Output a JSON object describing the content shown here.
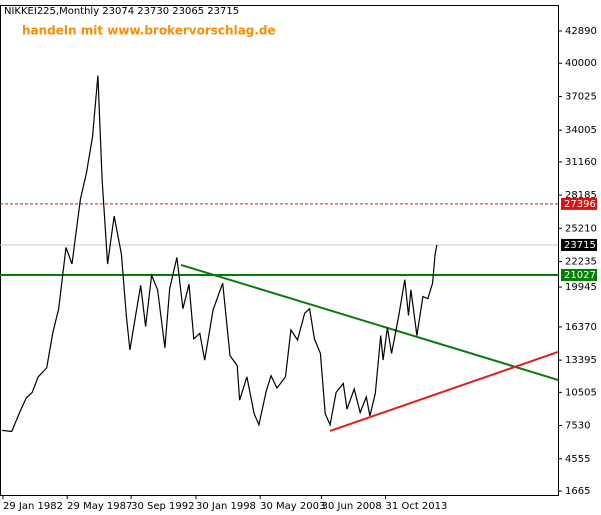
{
  "chart_data": {
    "type": "line",
    "title": "NIKKEI225,Monthly  23074 23730 23065 23715",
    "annotation": "handeln mit www.brokervorschlag.de",
    "x": [
      1982.0,
      1982.8,
      1983.5,
      1984.0,
      1984.5,
      1985.0,
      1985.7,
      1986.2,
      1986.7,
      1987.3,
      1987.8,
      1988.0,
      1988.5,
      1989.0,
      1989.5,
      1989.95,
      1990.3,
      1990.75,
      1991.0,
      1991.3,
      1991.9,
      1992.3,
      1992.6,
      1993.0,
      1993.5,
      1993.9,
      1994.4,
      1994.9,
      1995.5,
      1995.9,
      1996.5,
      1997.0,
      1997.5,
      1997.9,
      1998.4,
      1998.8,
      1999.5,
      2000.3,
      2000.9,
      2001.5,
      2001.7,
      2002.3,
      2002.9,
      2003.3,
      2003.9,
      2004.3,
      2004.8,
      2005.5,
      2005.95,
      2006.5,
      2007.1,
      2007.5,
      2007.9,
      2008.4,
      2008.8,
      2009.2,
      2009.7,
      2010.3,
      2010.6,
      2011.2,
      2011.7,
      2012.2,
      2012.5,
      2012.95,
      2013.4,
      2013.6,
      2013.95,
      2014.3,
      2014.9,
      2015.4,
      2015.7,
      2015.9,
      2016.4,
      2016.9,
      2017.3,
      2017.7,
      2017.9,
      2018.05
    ],
    "series": [
      {
        "color": "#000000",
        "values": [
          7100,
          7000,
          8800,
          10000,
          10500,
          11900,
          12700,
          15800,
          18000,
          23500,
          22000,
          23700,
          27800,
          30200,
          33400,
          38900,
          29600,
          22000,
          24000,
          26300,
          22900,
          17400,
          14300,
          16900,
          20100,
          16400,
          21000,
          19700,
          14500,
          19800,
          22600,
          18000,
          20200,
          15300,
          15800,
          13400,
          17900,
          20300,
          13800,
          12900,
          9800,
          11900,
          8600,
          7600,
          10600,
          12000,
          10900,
          11900,
          16100,
          15200,
          17600,
          18000,
          15300,
          14000,
          8600,
          7600,
          10500,
          11300,
          9000,
          10800,
          8700,
          10100,
          8400,
          10400,
          15600,
          13400,
          16300,
          14000,
          17400,
          20600,
          17400,
          19700,
          15600,
          19100,
          18900,
          20300,
          22800,
          23715
        ]
      }
    ],
    "xlim": [
      1981.83,
      2028.1
    ],
    "xticks": [
      {
        "value": 1982.08,
        "label": "29 Jan 1982"
      },
      {
        "value": 1987.4,
        "label": "29 May 1987"
      },
      {
        "value": 1992.7,
        "label": "30 Sep 1992"
      },
      {
        "value": 1998.08,
        "label": "30 Jan 1998"
      },
      {
        "value": 2003.4,
        "label": "30 May 2003"
      },
      {
        "value": 2008.5,
        "label": "30 Jun 2008"
      },
      {
        "value": 2013.8,
        "label": "31 Oct 2013"
      }
    ],
    "ylim": [
      1307,
      45220
    ],
    "yticks": [
      42890,
      40000,
      37025,
      34005,
      31160,
      28185,
      25210,
      22235,
      19945,
      16370,
      13395,
      10505,
      7530,
      4555,
      1665
    ],
    "levels": [
      {
        "value": 27396,
        "color": "#e01010",
        "dashed": true
      },
      {
        "value": 23715,
        "color": "#000000",
        "dashed": false
      },
      {
        "value": 21027,
        "color": "#008000",
        "dashed": false
      }
    ],
    "trendlines": [
      {
        "x": [
          1996.84,
          2028.1
        ],
        "y": [
          21924,
          11620
        ],
        "color": "#0a7a0a"
      },
      {
        "x": [
          2009.2,
          2028.1
        ],
        "y": [
          7050,
          14129
        ],
        "color": "#e02020"
      }
    ]
  }
}
